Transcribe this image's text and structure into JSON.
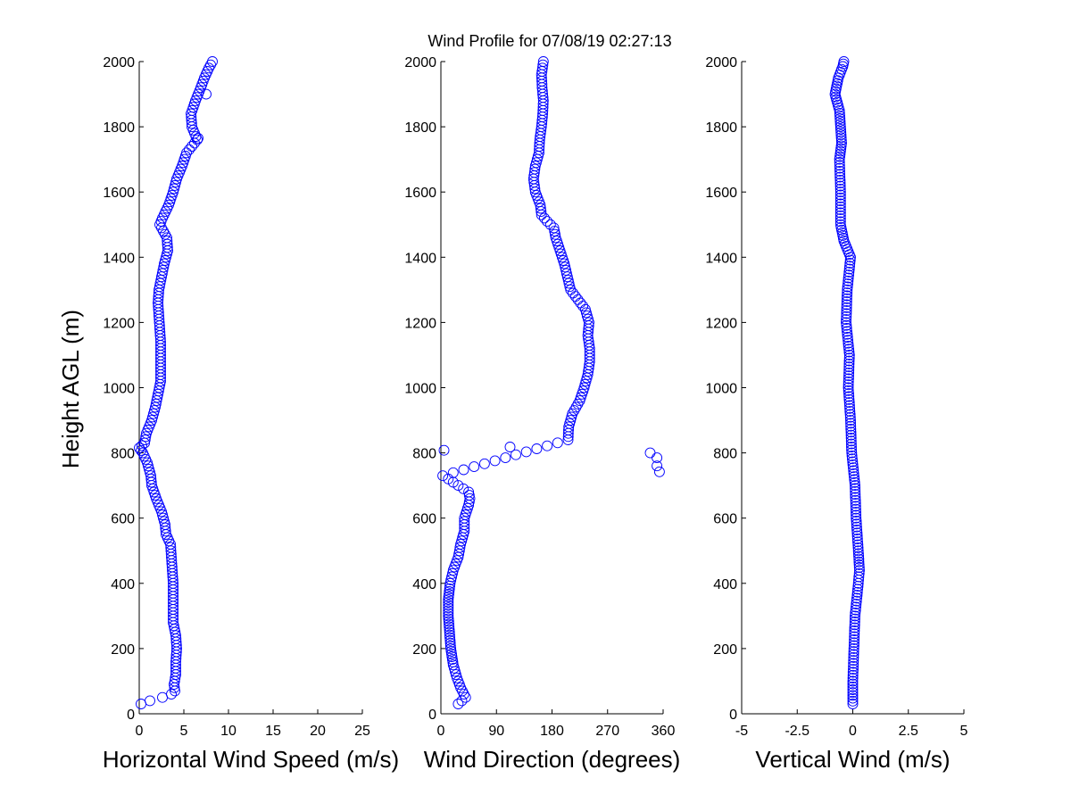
{
  "chart_data": {
    "title": "Wind Profile for  07/08/19 02:27:13",
    "marker_color": "#0000ff",
    "marker": "circle",
    "shared_ylabel": "Height AGL (m)",
    "panels": [
      {
        "type": "scatter",
        "xlabel": "Horizontal Wind Speed (m/s)",
        "xlim": [
          0,
          25
        ],
        "xticks": [
          "0",
          "5",
          "10",
          "15",
          "20",
          "25"
        ],
        "xtick_values": [
          0,
          5,
          10,
          15,
          20,
          25
        ],
        "ylim": [
          0,
          2000
        ],
        "yticks": [
          "0",
          "200",
          "400",
          "600",
          "800",
          "1000",
          "1200",
          "1400",
          "1600",
          "1800",
          "2000"
        ],
        "ytick_values": [
          0,
          200,
          400,
          600,
          800,
          1000,
          1200,
          1400,
          1600,
          1800,
          2000
        ],
        "profile": [
          [
            30,
            0.2
          ],
          [
            40,
            1.2
          ],
          [
            50,
            2.6
          ],
          [
            60,
            3.6
          ],
          [
            70,
            4.0
          ],
          [
            90,
            3.9
          ],
          [
            120,
            4.1
          ],
          [
            160,
            4.1
          ],
          [
            200,
            4.2
          ],
          [
            240,
            4.1
          ],
          [
            280,
            3.8
          ],
          [
            320,
            3.8
          ],
          [
            360,
            3.8
          ],
          [
            400,
            3.8
          ],
          [
            440,
            3.7
          ],
          [
            480,
            3.6
          ],
          [
            520,
            3.5
          ],
          [
            550,
            3.0
          ],
          [
            580,
            2.9
          ],
          [
            620,
            2.5
          ],
          [
            660,
            1.9
          ],
          [
            700,
            1.4
          ],
          [
            730,
            1.3
          ],
          [
            770,
            0.9
          ],
          [
            800,
            0.4
          ],
          [
            815,
            0.0
          ],
          [
            830,
            0.6
          ],
          [
            860,
            0.8
          ],
          [
            900,
            1.4
          ],
          [
            940,
            1.8
          ],
          [
            980,
            2.1
          ],
          [
            1020,
            2.4
          ],
          [
            1060,
            2.4
          ],
          [
            1100,
            2.4
          ],
          [
            1140,
            2.4
          ],
          [
            1180,
            2.3
          ],
          [
            1220,
            2.2
          ],
          [
            1260,
            2.1
          ],
          [
            1300,
            2.2
          ],
          [
            1340,
            2.5
          ],
          [
            1380,
            2.8
          ],
          [
            1420,
            3.2
          ],
          [
            1460,
            3.1
          ],
          [
            1500,
            2.3
          ],
          [
            1520,
            2.6
          ],
          [
            1560,
            3.3
          ],
          [
            1600,
            3.8
          ],
          [
            1640,
            4.2
          ],
          [
            1680,
            4.8
          ],
          [
            1720,
            5.3
          ],
          [
            1760,
            6.5
          ],
          [
            1800,
            5.9
          ],
          [
            1840,
            5.8
          ],
          [
            1880,
            6.3
          ],
          [
            1920,
            6.9
          ],
          [
            1950,
            7.3
          ],
          [
            1980,
            7.8
          ],
          [
            2000,
            8.2
          ]
        ],
        "outliers": [
          [
            1765,
            6.6
          ],
          [
            1900,
            7.5
          ]
        ]
      },
      {
        "type": "scatter",
        "xlabel": "Wind Direction (degrees)",
        "xlim": [
          0,
          360
        ],
        "xticks": [
          "0",
          "90",
          "180",
          "270",
          "360"
        ],
        "xtick_values": [
          0,
          90,
          180,
          270,
          360
        ],
        "ylim": [
          0,
          2000
        ],
        "yticks": [
          "0",
          "200",
          "400",
          "600",
          "800",
          "1000",
          "1200",
          "1400",
          "1600",
          "1800",
          "2000"
        ],
        "ytick_values": [
          0,
          200,
          400,
          600,
          800,
          1000,
          1200,
          1400,
          1600,
          1800,
          2000
        ],
        "profile": [
          [
            30,
            28
          ],
          [
            50,
            40
          ],
          [
            80,
            32
          ],
          [
            110,
            26
          ],
          [
            150,
            20
          ],
          [
            200,
            16
          ],
          [
            250,
            14
          ],
          [
            300,
            12
          ],
          [
            350,
            12
          ],
          [
            400,
            15
          ],
          [
            440,
            20
          ],
          [
            480,
            28
          ],
          [
            520,
            32
          ],
          [
            560,
            38
          ],
          [
            600,
            38
          ],
          [
            640,
            45
          ],
          [
            660,
            47
          ],
          [
            680,
            45
          ],
          [
            700,
            28
          ],
          [
            720,
            12
          ],
          [
            730,
            3
          ],
          [
            840,
            206
          ],
          [
            880,
            207
          ],
          [
            920,
            213
          ],
          [
            960,
            225
          ],
          [
            1000,
            232
          ],
          [
            1040,
            238
          ],
          [
            1080,
            241
          ],
          [
            1120,
            241
          ],
          [
            1160,
            238
          ],
          [
            1200,
            240
          ],
          [
            1240,
            234
          ],
          [
            1270,
            222
          ],
          [
            1300,
            210
          ],
          [
            1340,
            205
          ],
          [
            1380,
            200
          ],
          [
            1420,
            193
          ],
          [
            1460,
            186
          ],
          [
            1490,
            183
          ],
          [
            1510,
            172
          ],
          [
            1530,
            163
          ],
          [
            1560,
            161
          ],
          [
            1600,
            153
          ],
          [
            1640,
            150
          ],
          [
            1680,
            153
          ],
          [
            1720,
            159
          ],
          [
            1760,
            160
          ],
          [
            1800,
            163
          ],
          [
            1840,
            165
          ],
          [
            1880,
            166
          ],
          [
            1920,
            164
          ],
          [
            1960,
            163
          ],
          [
            2000,
            166
          ]
        ],
        "outliers": [
          [
            808,
            5
          ],
          [
            818,
            112
          ],
          [
            800,
            339
          ],
          [
            785,
            350
          ],
          [
            760,
            350
          ],
          [
            742,
            354
          ]
        ]
      },
      {
        "type": "scatter",
        "xlabel": "Vertical Wind (m/s)",
        "xlim": [
          -5,
          5
        ],
        "xticks": [
          "-5",
          "-2.5",
          "0",
          "2.5",
          "5"
        ],
        "xtick_values": [
          -5,
          -2.5,
          0,
          2.5,
          5
        ],
        "ylim": [
          0,
          2000
        ],
        "yticks": [
          "0",
          "200",
          "400",
          "600",
          "800",
          "1000",
          "1200",
          "1400",
          "1600",
          "1800",
          "2000"
        ],
        "ytick_values": [
          0,
          200,
          400,
          600,
          800,
          1000,
          1200,
          1400,
          1600,
          1800,
          2000
        ],
        "profile": [
          [
            30,
            0.0
          ],
          [
            100,
            0.0
          ],
          [
            200,
            0.05
          ],
          [
            300,
            0.1
          ],
          [
            400,
            0.25
          ],
          [
            440,
            0.3
          ],
          [
            500,
            0.25
          ],
          [
            600,
            0.15
          ],
          [
            700,
            0.1
          ],
          [
            800,
            -0.05
          ],
          [
            900,
            -0.1
          ],
          [
            1000,
            -0.2
          ],
          [
            1100,
            -0.15
          ],
          [
            1200,
            -0.3
          ],
          [
            1300,
            -0.25
          ],
          [
            1400,
            -0.1
          ],
          [
            1450,
            -0.4
          ],
          [
            1500,
            -0.55
          ],
          [
            1600,
            -0.55
          ],
          [
            1700,
            -0.6
          ],
          [
            1750,
            -0.5
          ],
          [
            1800,
            -0.55
          ],
          [
            1850,
            -0.6
          ],
          [
            1900,
            -0.8
          ],
          [
            1950,
            -0.65
          ],
          [
            1985,
            -0.45
          ],
          [
            2000,
            -0.4
          ]
        ],
        "outliers": []
      }
    ]
  }
}
